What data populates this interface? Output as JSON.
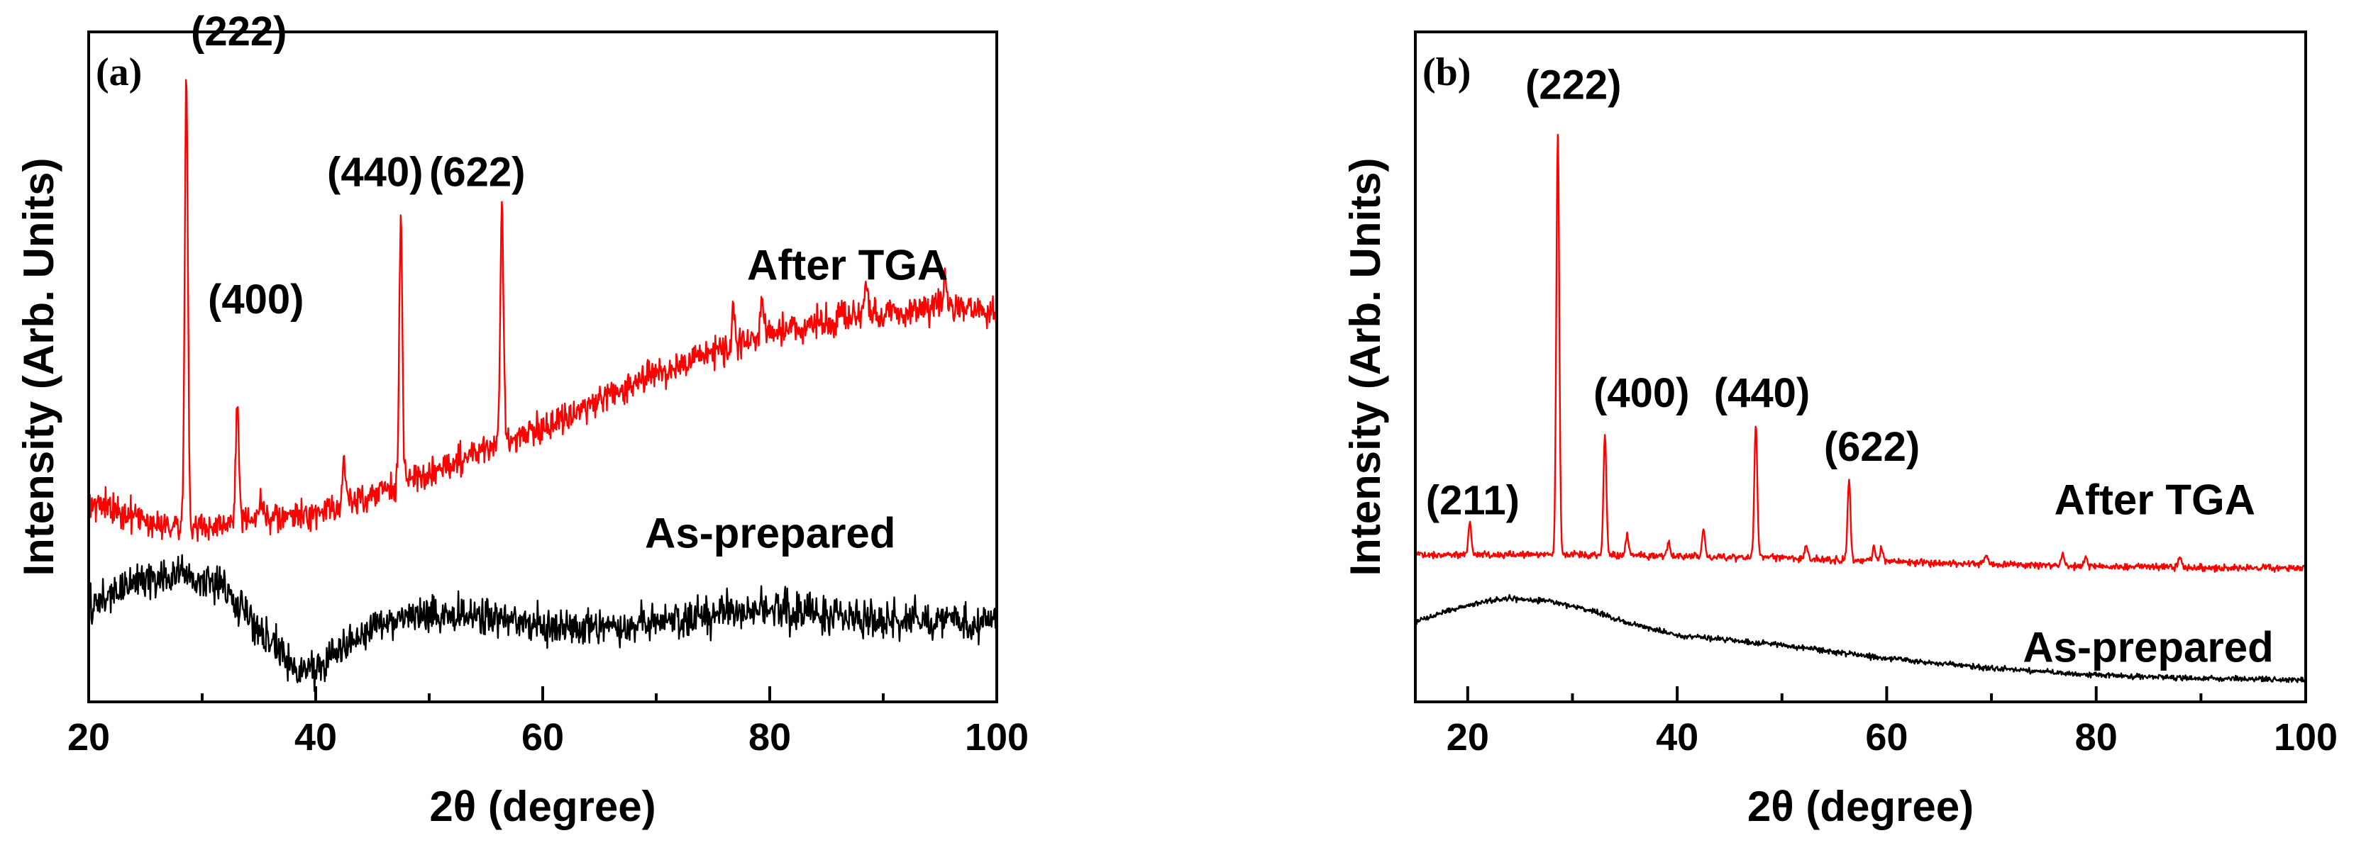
{
  "chart_data": [
    {
      "type": "line",
      "panel_label": "(a)",
      "xlabel": "2θ (degree)",
      "ylabel": "Intensity (Arb. Units)",
      "xlim": [
        20,
        100
      ],
      "xticks": [
        20,
        40,
        60,
        80,
        100
      ],
      "ylim": [
        0,
        100
      ],
      "series": [
        {
          "name": "After TGA",
          "color": "#ff0000",
          "baseline": [
            [
              20,
              30
            ],
            [
              25,
              27
            ],
            [
              30,
              26
            ],
            [
              35,
              27
            ],
            [
              40,
              28
            ],
            [
              45,
              31
            ],
            [
              50,
              34
            ],
            [
              55,
              38
            ],
            [
              60,
              41
            ],
            [
              65,
              45
            ],
            [
              70,
              49
            ],
            [
              75,
              52
            ],
            [
              80,
              55
            ],
            [
              85,
              57
            ],
            [
              90,
              58
            ],
            [
              95,
              59
            ],
            [
              100,
              58
            ]
          ],
          "noise": 2.2,
          "peaks": [
            [
              28.6,
              66
            ],
            [
              33.1,
              18
            ],
            [
              35.2,
              4
            ],
            [
              42.5,
              6
            ],
            [
              47.5,
              39
            ],
            [
              56.4,
              35
            ],
            [
              76.8,
              6
            ],
            [
              79.3,
              5
            ],
            [
              88.5,
              5
            ],
            [
              95.4,
              4
            ]
          ]
        },
        {
          "name": "As-prepared",
          "color": "#000000",
          "baseline": [
            [
              20,
              14
            ],
            [
              24,
              18
            ],
            [
              28,
              19
            ],
            [
              32,
              17
            ],
            [
              35,
              11
            ],
            [
              38,
              5
            ],
            [
              40,
              5
            ],
            [
              43,
              9
            ],
            [
              46,
              12
            ],
            [
              50,
              13
            ],
            [
              55,
              13
            ],
            [
              60,
              11
            ],
            [
              65,
              11
            ],
            [
              70,
              12
            ],
            [
              75,
              13
            ],
            [
              80,
              14
            ],
            [
              85,
              13
            ],
            [
              90,
              12
            ],
            [
              95,
              12
            ],
            [
              100,
              12
            ]
          ],
          "noise": 2.8,
          "peaks": []
        }
      ],
      "annotations": [
        {
          "text": "(222)",
          "x": 29.0,
          "y": 98
        },
        {
          "text": "(400)",
          "x": 30.5,
          "y": 58
        },
        {
          "text": "(440)",
          "x": 41.0,
          "y": 77
        },
        {
          "text": "(622)",
          "x": 50.0,
          "y": 77
        },
        {
          "text": "After TGA",
          "x": 78.0,
          "y": 63
        },
        {
          "text": "As-prepared",
          "x": 69.0,
          "y": 23
        }
      ]
    },
    {
      "type": "line",
      "panel_label": "(b)",
      "xlabel": "2θ (degree)",
      "ylabel": "Intensity (Arb. Units)",
      "xlim": [
        15,
        100
      ],
      "xticks": [
        20,
        40,
        60,
        80,
        100
      ],
      "ylim": [
        0,
        100
      ],
      "series": [
        {
          "name": "After TGA",
          "color": "#ff0000",
          "baseline": [
            [
              15,
              22
            ],
            [
              30,
              22
            ],
            [
              50,
              21.5
            ],
            [
              70,
              20.5
            ],
            [
              90,
              20
            ],
            [
              100,
              20
            ]
          ],
          "noise": 0.5,
          "peaks": [
            [
              20.2,
              5
            ],
            [
              28.6,
              63
            ],
            [
              33.1,
              18
            ],
            [
              35.2,
              3
            ],
            [
              39.2,
              2
            ],
            [
              42.5,
              4
            ],
            [
              47.5,
              20
            ],
            [
              52.3,
              2
            ],
            [
              56.4,
              12
            ],
            [
              58.8,
              2
            ],
            [
              59.5,
              2
            ],
            [
              69.5,
              1.5
            ],
            [
              76.8,
              2
            ],
            [
              79.0,
              1.5
            ],
            [
              88.0,
              1.5
            ]
          ]
        },
        {
          "name": "As-prepared",
          "color": "#000000",
          "baseline": [
            [
              15,
              12
            ],
            [
              20,
              14.5
            ],
            [
              24,
              15.5
            ],
            [
              28,
              15
            ],
            [
              32,
              13.5
            ],
            [
              36,
              11.5
            ],
            [
              40,
              10
            ],
            [
              50,
              8.5
            ],
            [
              60,
              6.5
            ],
            [
              70,
              5
            ],
            [
              80,
              4
            ],
            [
              90,
              3.5
            ],
            [
              100,
              3.3
            ]
          ],
          "noise": 0.4,
          "peaks": []
        }
      ],
      "annotations": [
        {
          "text": "(211)",
          "x": 16.0,
          "y": 28
        },
        {
          "text": "(222)",
          "x": 25.5,
          "y": 90
        },
        {
          "text": "(400)",
          "x": 32.0,
          "y": 44
        },
        {
          "text": "(440)",
          "x": 43.5,
          "y": 44
        },
        {
          "text": "(622)",
          "x": 54.0,
          "y": 36
        },
        {
          "text": "After TGA",
          "x": 76.0,
          "y": 28
        },
        {
          "text": "As-prepared",
          "x": 73.0,
          "y": 6
        }
      ]
    }
  ]
}
